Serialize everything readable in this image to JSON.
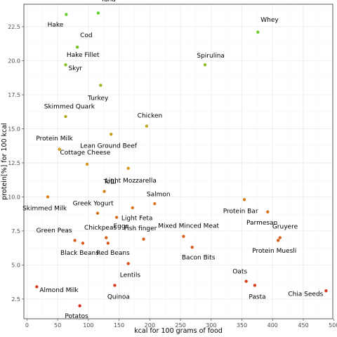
{
  "chart_data": {
    "type": "scatter",
    "xlabel": "kcal for 100 grams of food",
    "ylabel": "protein[%] for 100 kcal",
    "xlim": [
      -5,
      498
    ],
    "ylim": [
      1.05,
      24.15
    ],
    "x_ticks": [
      0,
      50,
      100,
      150,
      200,
      250,
      300,
      350,
      400,
      450,
      500
    ],
    "y_ticks": [
      2.5,
      5.0,
      7.5,
      10.0,
      12.5,
      15.0,
      17.5,
      20.0,
      22.5
    ],
    "x_tick_labels": [
      "0",
      "50",
      "100",
      "150",
      "200",
      "250",
      "300",
      "350",
      "400",
      "450",
      "500"
    ],
    "y_tick_labels": [
      "2.5",
      "5.0",
      "7.5",
      "10.0",
      "12.5",
      "15.0",
      "17.5",
      "20.0",
      "22.5"
    ],
    "grid": true,
    "legend": "none",
    "color_scale": {
      "low": "#d7301f",
      "mid": "#d69a1c",
      "high": "#5fd12e"
    },
    "points": [
      {
        "label": "Tuna",
        "x": 116,
        "y": 23.5,
        "lx": 1.3,
        "ly": -2.2
      },
      {
        "label": "Hake",
        "x": 64,
        "y": 23.4,
        "lx": -1.2,
        "ly": 1.6
      },
      {
        "label": "Whey",
        "x": 376,
        "y": 22.1,
        "lx": 1.3,
        "ly": -2.0
      },
      {
        "label": "Cod",
        "x": 82,
        "y": 21.0,
        "lx": 1.3,
        "ly": -1.9
      },
      {
        "label": "Hake Fillet",
        "x": 82,
        "y": 21.0,
        "lx": 0.9,
        "ly": 1.2
      },
      {
        "label": "Skyr",
        "x": 63,
        "y": 19.7,
        "lx": 1.5,
        "ly": 0.5
      },
      {
        "label": "Spirulina",
        "x": 290,
        "y": 19.7,
        "lx": 0.9,
        "ly": -1.5
      },
      {
        "label": "Turkey",
        "x": 120,
        "y": 18.2,
        "lx": -0.4,
        "ly": 2.0
      },
      {
        "label": "Skimmed Quark",
        "x": 63,
        "y": 15.9,
        "lx": 0.6,
        "ly": -1.6
      },
      {
        "label": "Chicken",
        "x": 195,
        "y": 15.2,
        "lx": 0.5,
        "ly": -1.7
      },
      {
        "label": "Lean Ground Beef",
        "x": 137,
        "y": 14.6,
        "lx": -0.4,
        "ly": 1.8
      },
      {
        "label": "Protein Milk",
        "x": 53,
        "y": 13.5,
        "lx": -0.8,
        "ly": -1.7
      },
      {
        "label": "Cottage Cheese",
        "x": 98,
        "y": 12.4,
        "lx": -0.3,
        "ly": -1.9
      },
      {
        "label": "Light Mozzarella",
        "x": 165,
        "y": 12.1,
        "lx": 0.4,
        "ly": 1.9
      },
      {
        "label": "Tofu",
        "x": 126,
        "y": 10.4,
        "lx": 0.9,
        "ly": -1.6
      },
      {
        "label": "Skimmed Milk",
        "x": 34,
        "y": 10.0,
        "lx": -0.5,
        "ly": 1.8
      },
      {
        "label": "Salmon",
        "x": 208,
        "y": 9.5,
        "lx": 0.6,
        "ly": -1.5
      },
      {
        "label": "Protein Bar",
        "x": 354,
        "y": 9.8,
        "lx": -0.6,
        "ly": 1.8
      },
      {
        "label": "Greek Yogurt",
        "x": 115,
        "y": 8.8,
        "lx": -0.7,
        "ly": -1.6
      },
      {
        "label": "Light Feta",
        "x": 172,
        "y": 9.2,
        "lx": 0.7,
        "ly": 1.6
      },
      {
        "label": "Parmesan",
        "x": 392,
        "y": 8.9,
        "lx": -0.9,
        "ly": 1.7
      },
      {
        "label": "Eggs",
        "x": 146,
        "y": 8.5,
        "lx": 0.7,
        "ly": 1.4
      },
      {
        "label": "Mixed Minced Meat",
        "x": 255,
        "y": 7.1,
        "lx": 0.8,
        "ly": -1.7
      },
      {
        "label": "Gruyere",
        "x": 412,
        "y": 7.0,
        "lx": 0.8,
        "ly": -1.8
      },
      {
        "label": "Chickpeas",
        "x": 129,
        "y": 7.0,
        "lx": -0.9,
        "ly": -1.6
      },
      {
        "label": "Fish finger",
        "x": 190,
        "y": 6.9,
        "lx": -0.5,
        "ly": -1.7
      },
      {
        "label": "Green Peas",
        "x": 78,
        "y": 6.8,
        "lx": -1.4,
        "ly": -1.6
      },
      {
        "label": "Protein Muesli",
        "x": 409,
        "y": 6.8,
        "lx": -0.6,
        "ly": 1.6
      },
      {
        "label": "Black Beans",
        "x": 91,
        "y": 6.6,
        "lx": -0.5,
        "ly": 1.5
      },
      {
        "label": "Red Beans",
        "x": 132,
        "y": 6.6,
        "lx": 0.8,
        "ly": 1.5
      },
      {
        "label": "Bacon Bits",
        "x": 269,
        "y": 6.3,
        "lx": 1.0,
        "ly": 1.6
      },
      {
        "label": "Lentils",
        "x": 165,
        "y": 5.1,
        "lx": 0.3,
        "ly": 1.8
      },
      {
        "label": "Oats",
        "x": 357,
        "y": 3.8,
        "lx": -1.0,
        "ly": -1.6
      },
      {
        "label": "Quinoa",
        "x": 143,
        "y": 3.5,
        "lx": 0.6,
        "ly": 1.8
      },
      {
        "label": "Almond Milk",
        "x": 16,
        "y": 3.4,
        "lx": 1.3,
        "ly": 0.5
      },
      {
        "label": "Pasta",
        "x": 371,
        "y": 3.5,
        "lx": 0.4,
        "ly": 1.8
      },
      {
        "label": "Chia Seeds",
        "x": 487,
        "y": 3.1,
        "lx": -1.3,
        "ly": 0.5
      },
      {
        "label": "Potatos",
        "x": 86,
        "y": 2.0,
        "lx": -0.5,
        "ly": 1.6
      }
    ]
  }
}
